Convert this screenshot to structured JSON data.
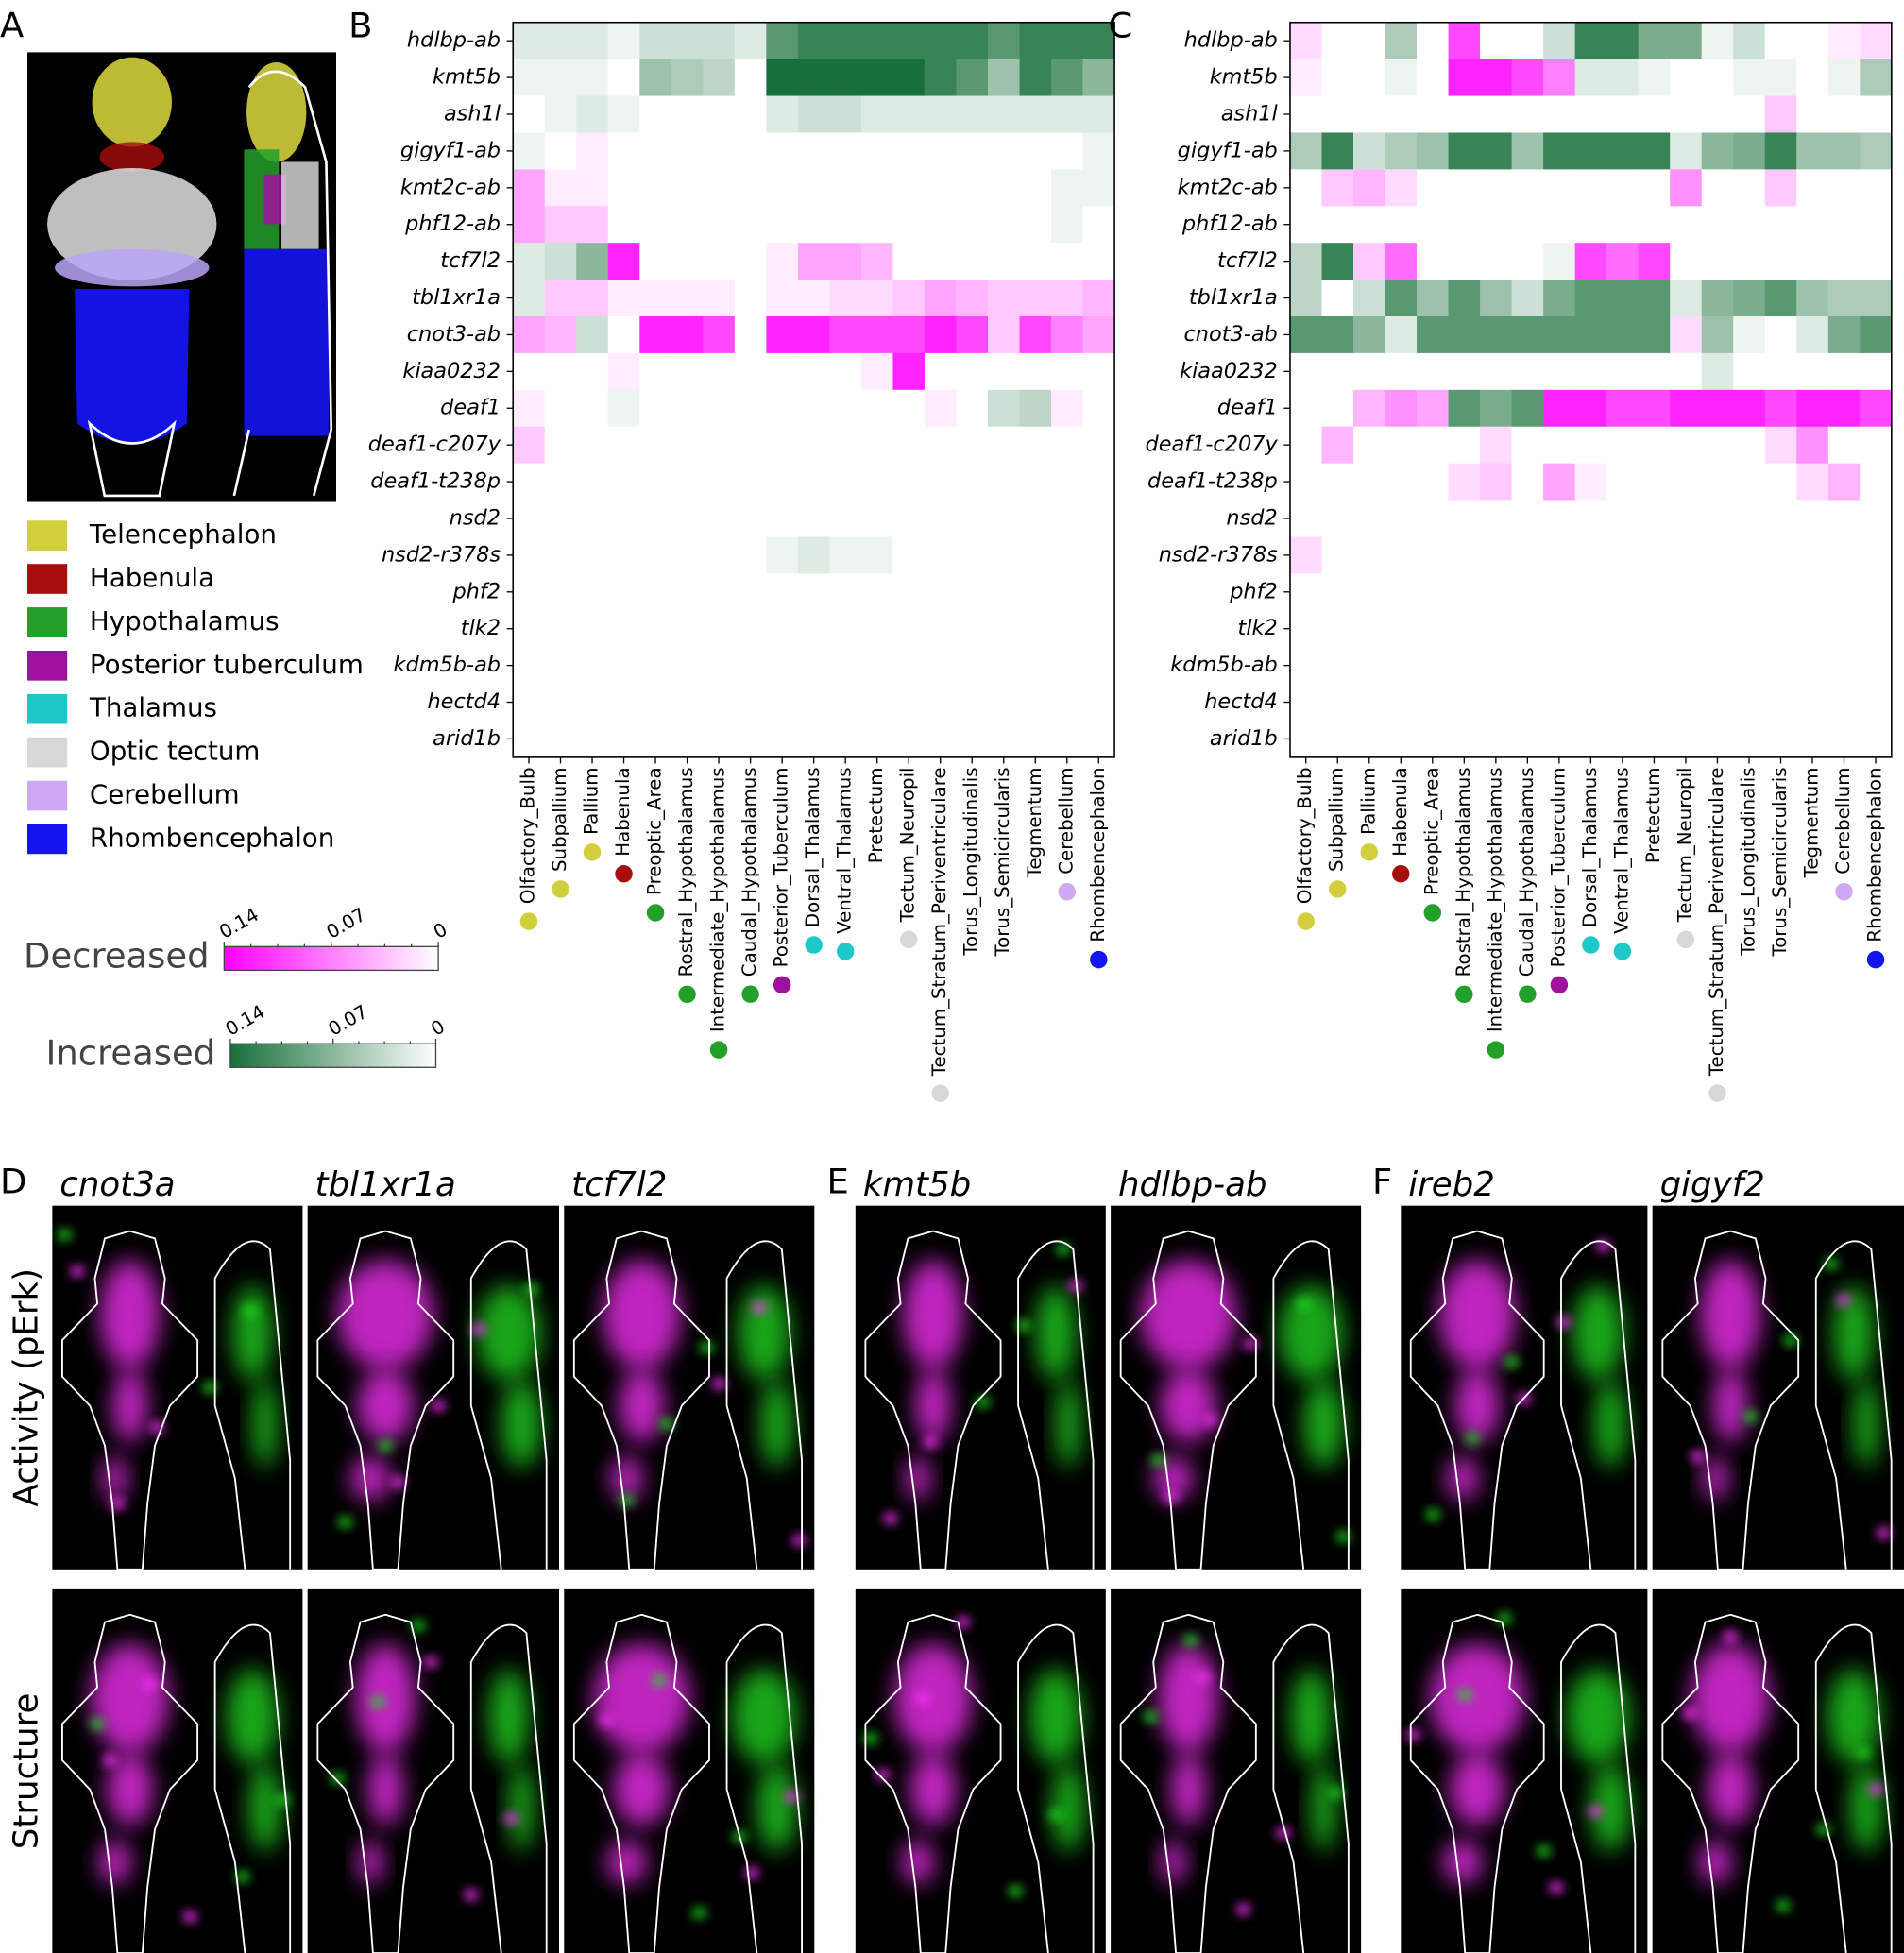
{
  "brain_panel": {
    "label": "A",
    "legend": [
      {
        "name": "Telencephalon",
        "color": "#d2cf3c"
      },
      {
        "name": "Habenula",
        "color": "#a80d0d"
      },
      {
        "name": "Hypothalamus",
        "color": "#22a02a"
      },
      {
        "name": "Posterior tuberculum",
        "color": "#a0109e"
      },
      {
        "name": "Thalamus",
        "color": "#1ec8c8"
      },
      {
        "name": "Optic tectum",
        "color": "#d8d8d8"
      },
      {
        "name": "Cerebellum",
        "color": "#cfa8f4"
      },
      {
        "name": "Rhombencephalon",
        "color": "#1414f0"
      }
    ]
  },
  "heatmap": {
    "genes": [
      "hdlbp-ab",
      "kmt5b",
      "ash1l",
      "gigyf1-ab",
      "kmt2c-ab",
      "phf12-ab",
      "tcf7l2",
      "tbl1xr1a",
      "cnot3-ab",
      "kiaa0232",
      "deaf1",
      "deaf1-c207y",
      "deaf1-t238p",
      "nsd2",
      "nsd2-r378s",
      "phf2",
      "tlk2",
      "kdm5b-ab",
      "hectd4",
      "arid1b"
    ],
    "regions": [
      "Olfactory_Bulb",
      "Subpallium",
      "Pallium",
      "Habenula",
      "Preoptic_Area",
      "Rostral_Hypothalamus",
      "Intermediate_Hypothalamus",
      "Caudal_Hypothalamus",
      "Posterior_Tuberculum",
      "Dorsal_Thalamus",
      "Ventral_Thalamus",
      "Pretectum",
      "Tectum_Neuropil",
      "Tectum_Stratum_Periventriculare",
      "Torus_Longitudinalis",
      "Torus_Semicircularis",
      "Tegmentum",
      "Cerebellum",
      "Rhombencephalon"
    ],
    "region_colors": [
      "#d2cf3c",
      "#d2cf3c",
      "#d2cf3c",
      "#a80d0d",
      "#22a02a",
      "#22a02a",
      "#22a02a",
      "#22a02a",
      "#a0109e",
      "#1ec8c8",
      "#1ec8c8",
      null,
      "#d8d8d8",
      "#d8d8d8",
      null,
      null,
      null,
      "#cfa8f4",
      "#1414f0"
    ],
    "panels": [
      {
        "label": "B",
        "values": [
          [
            0.02,
            0.02,
            0.02,
            0.01,
            0.03,
            0.03,
            0.03,
            0.02,
            0.1,
            0.12,
            0.12,
            0.12,
            0.12,
            0.12,
            0.12,
            0.1,
            0.12,
            0.12,
            0.12
          ],
          [
            0.01,
            0.01,
            0.01,
            0,
            0.06,
            0.05,
            0.04,
            0,
            0.14,
            0.14,
            0.14,
            0.14,
            0.14,
            0.12,
            0.1,
            0.06,
            0.12,
            0.1,
            0.07
          ],
          [
            0,
            0.01,
            0.02,
            0.01,
            0,
            0,
            0,
            0,
            0.02,
            0.03,
            0.03,
            0.02,
            0.02,
            0.02,
            0.02,
            0.02,
            0.02,
            0.02,
            0.02
          ],
          [
            0.01,
            0,
            -0.01,
            0,
            0,
            0,
            0,
            0,
            0,
            0,
            0,
            0,
            0,
            0,
            0,
            0,
            0,
            0,
            0.01
          ],
          [
            -0.05,
            -0.01,
            -0.01,
            0,
            0,
            0,
            0,
            0,
            0,
            0,
            0,
            0,
            0,
            0,
            0,
            0,
            0,
            0.01,
            0.01
          ],
          [
            -0.05,
            -0.03,
            -0.03,
            0,
            0,
            0,
            0,
            0,
            0,
            0,
            0,
            0,
            0,
            0,
            0,
            0,
            0,
            0.01,
            0
          ],
          [
            0.02,
            0.03,
            0.07,
            -0.12,
            0,
            0,
            0,
            0,
            -0.01,
            -0.05,
            -0.05,
            -0.04,
            0,
            0,
            0,
            0,
            0,
            0,
            0
          ],
          [
            0.02,
            -0.03,
            -0.03,
            -0.01,
            -0.01,
            -0.01,
            -0.01,
            0,
            -0.01,
            -0.01,
            -0.02,
            -0.02,
            -0.03,
            -0.05,
            -0.04,
            -0.03,
            -0.03,
            -0.03,
            -0.04
          ],
          [
            -0.05,
            -0.04,
            0.03,
            0,
            -0.12,
            -0.12,
            -0.1,
            0,
            -0.12,
            -0.12,
            -0.1,
            -0.1,
            -0.1,
            -0.12,
            -0.1,
            -0.03,
            -0.1,
            -0.07,
            -0.05
          ],
          [
            0,
            0,
            0,
            -0.01,
            0,
            0,
            0,
            0,
            0,
            0,
            0,
            -0.01,
            -0.12,
            0,
            0,
            0,
            0,
            0,
            0
          ],
          [
            -0.01,
            0,
            0,
            0.01,
            0,
            0,
            0,
            0,
            0,
            0,
            0,
            0,
            0,
            -0.01,
            0,
            0.03,
            0.04,
            -0.01,
            0
          ],
          [
            -0.03,
            0,
            0,
            0,
            0,
            0,
            0,
            0,
            0,
            0,
            0,
            0,
            0,
            0,
            0,
            0,
            0,
            0,
            0
          ],
          [
            0,
            0,
            0,
            0,
            0,
            0,
            0,
            0,
            0,
            0,
            0,
            0,
            0,
            0,
            0,
            0,
            0,
            0,
            0
          ],
          [
            0,
            0,
            0,
            0,
            0,
            0,
            0,
            0,
            0,
            0,
            0,
            0,
            0,
            0,
            0,
            0,
            0,
            0,
            0
          ],
          [
            0,
            0,
            0,
            0,
            0,
            0,
            0,
            0,
            0.01,
            0.02,
            0.01,
            0.01,
            0,
            0,
            0,
            0,
            0,
            0,
            0
          ],
          [
            0,
            0,
            0,
            0,
            0,
            0,
            0,
            0,
            0,
            0,
            0,
            0,
            0,
            0,
            0,
            0,
            0,
            0,
            0
          ],
          [
            0,
            0,
            0,
            0,
            0,
            0,
            0,
            0,
            0,
            0,
            0,
            0,
            0,
            0,
            0,
            0,
            0,
            0,
            0
          ],
          [
            0,
            0,
            0,
            0,
            0,
            0,
            0,
            0,
            0,
            0,
            0,
            0,
            0,
            0,
            0,
            0,
            0,
            0,
            0
          ],
          [
            0,
            0,
            0,
            0,
            0,
            0,
            0,
            0,
            0,
            0,
            0,
            0,
            0,
            0,
            0,
            0,
            0,
            0,
            0
          ],
          [
            0,
            0,
            0,
            0,
            0,
            0,
            0,
            0,
            0,
            0,
            0,
            0,
            0,
            0,
            0,
            0,
            0,
            0,
            0
          ]
        ]
      },
      {
        "label": "C",
        "values": [
          [
            -0.02,
            0,
            0,
            0.05,
            0,
            -0.1,
            0,
            0,
            0.03,
            0.12,
            0.12,
            0.08,
            0.08,
            0.01,
            0.03,
            0,
            0,
            -0.01,
            -0.02
          ],
          [
            -0.01,
            0,
            0,
            0.01,
            0,
            -0.12,
            -0.12,
            -0.1,
            -0.07,
            0.02,
            0.02,
            0.01,
            0,
            0,
            0.01,
            0.01,
            0,
            0.01,
            0.05
          ],
          [
            0,
            0,
            0,
            0,
            0,
            0,
            0,
            0,
            0,
            0,
            0,
            0,
            0,
            0,
            0,
            -0.03,
            0,
            0,
            0
          ],
          [
            0.05,
            0.12,
            0.03,
            0.05,
            0.06,
            0.12,
            0.12,
            0.06,
            0.12,
            0.12,
            0.12,
            0.12,
            0.02,
            0.07,
            0.08,
            0.12,
            0.06,
            0.06,
            0.05
          ],
          [
            0,
            -0.03,
            -0.04,
            -0.02,
            0,
            0,
            0,
            0,
            0,
            0,
            0,
            0,
            -0.06,
            0,
            0,
            -0.03,
            0,
            0,
            0
          ],
          [
            0,
            0,
            0,
            0,
            0,
            0,
            0,
            0,
            0,
            0,
            0,
            0,
            0,
            0,
            0,
            0,
            0,
            0,
            0
          ],
          [
            0.04,
            0.12,
            -0.03,
            -0.08,
            0,
            0,
            0,
            0,
            0.01,
            -0.1,
            -0.08,
            -0.1,
            0,
            0,
            0,
            0,
            0,
            0,
            0
          ],
          [
            0.04,
            0,
            0.03,
            0.1,
            0.06,
            0.1,
            0.06,
            0.03,
            0.08,
            0.1,
            0.1,
            0.1,
            0.02,
            0.07,
            0.08,
            0.1,
            0.06,
            0.05,
            0.05
          ],
          [
            0.1,
            0.1,
            0.07,
            0.02,
            0.1,
            0.1,
            0.1,
            0.1,
            0.1,
            0.1,
            0.1,
            0.1,
            -0.02,
            0.06,
            0.01,
            0,
            0.02,
            0.08,
            0.1
          ],
          [
            0,
            0,
            0,
            0,
            0,
            0,
            0,
            0,
            0,
            0,
            0,
            0,
            0,
            0.02,
            0,
            0,
            0,
            0,
            0
          ],
          [
            0,
            0,
            -0.04,
            -0.06,
            -0.05,
            0.1,
            0.08,
            0.1,
            -0.12,
            -0.12,
            -0.1,
            -0.1,
            -0.12,
            -0.12,
            -0.12,
            -0.1,
            -0.12,
            -0.12,
            -0.1
          ],
          [
            0,
            -0.04,
            0,
            0,
            0,
            0,
            -0.02,
            0,
            0,
            0,
            0,
            0,
            0,
            0,
            0,
            -0.02,
            -0.06,
            0,
            0
          ],
          [
            0,
            0,
            0,
            0,
            0,
            -0.02,
            -0.03,
            0,
            -0.05,
            -0.01,
            0,
            0,
            0,
            0,
            0,
            0,
            -0.02,
            -0.04,
            0
          ],
          [
            0,
            0,
            0,
            0,
            0,
            0,
            0,
            0,
            0,
            0,
            0,
            0,
            0,
            0,
            0,
            0,
            0,
            0,
            0
          ],
          [
            -0.02,
            0,
            0,
            0,
            0,
            0,
            0,
            0,
            0,
            0,
            0,
            0,
            0,
            0,
            0,
            0,
            0,
            0,
            0
          ],
          [
            0,
            0,
            0,
            0,
            0,
            0,
            0,
            0,
            0,
            0,
            0,
            0,
            0,
            0,
            0,
            0,
            0,
            0,
            0
          ],
          [
            0,
            0,
            0,
            0,
            0,
            0,
            0,
            0,
            0,
            0,
            0,
            0,
            0,
            0,
            0,
            0,
            0,
            0,
            0
          ],
          [
            0,
            0,
            0,
            0,
            0,
            0,
            0,
            0,
            0,
            0,
            0,
            0,
            0,
            0,
            0,
            0,
            0,
            0,
            0
          ],
          [
            0,
            0,
            0,
            0,
            0,
            0,
            0,
            0,
            0,
            0,
            0,
            0,
            0,
            0,
            0,
            0,
            0,
            0,
            0
          ],
          [
            0,
            0,
            0,
            0,
            0,
            0,
            0,
            0,
            0,
            0,
            0,
            0,
            0,
            0,
            0,
            0,
            0,
            0,
            0
          ]
        ]
      }
    ],
    "colorbars": [
      {
        "name": "Decreased",
        "color": "#ff00ff",
        "lim": [
          0.14,
          0
        ],
        "ticks": [
          0.14,
          0.07,
          0
        ]
      },
      {
        "name": "Increased",
        "color": "#17703a",
        "lim": [
          0.14,
          0
        ],
        "ticks": [
          0.14,
          0.07,
          0
        ]
      }
    ]
  },
  "images": {
    "row_labels": [
      "Activity (pErk)",
      "Structure"
    ],
    "groups": [
      {
        "label": "D",
        "genes": [
          "cnot3a",
          "tbl1xr1a",
          "tcf7l2"
        ]
      },
      {
        "label": "E",
        "genes": [
          "kmt5b",
          "hdlbp-ab"
        ]
      },
      {
        "label": "F",
        "genes": [
          "ireb2",
          "gigyf2"
        ]
      }
    ]
  }
}
